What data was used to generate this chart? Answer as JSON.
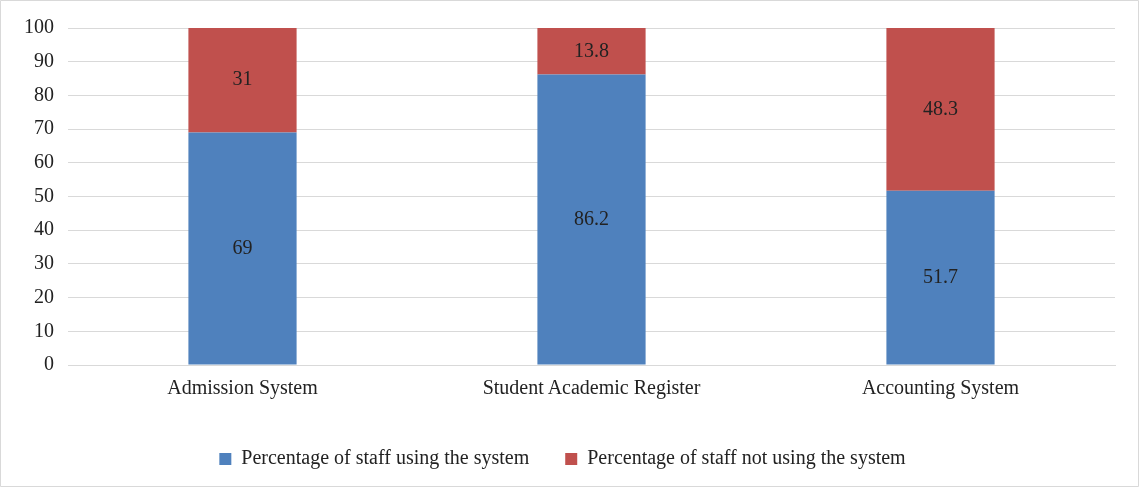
{
  "chart_data": {
    "type": "bar",
    "stacked": true,
    "categories": [
      "Admission System",
      "Student Academic Register",
      "Accounting System"
    ],
    "series": [
      {
        "name": "Percentage of staff using the system",
        "color": "#4f81bd",
        "values": [
          69,
          86.2,
          51.7
        ]
      },
      {
        "name": "Percentage of staff not using the system",
        "color": "#c0504d",
        "values": [
          31,
          13.8,
          48.3
        ]
      }
    ],
    "ylim": [
      0,
      100
    ],
    "yticks": [
      0,
      10,
      20,
      30,
      40,
      50,
      60,
      70,
      80,
      90,
      100
    ],
    "grid": "y",
    "legend": "bottom",
    "data_labels": true
  }
}
